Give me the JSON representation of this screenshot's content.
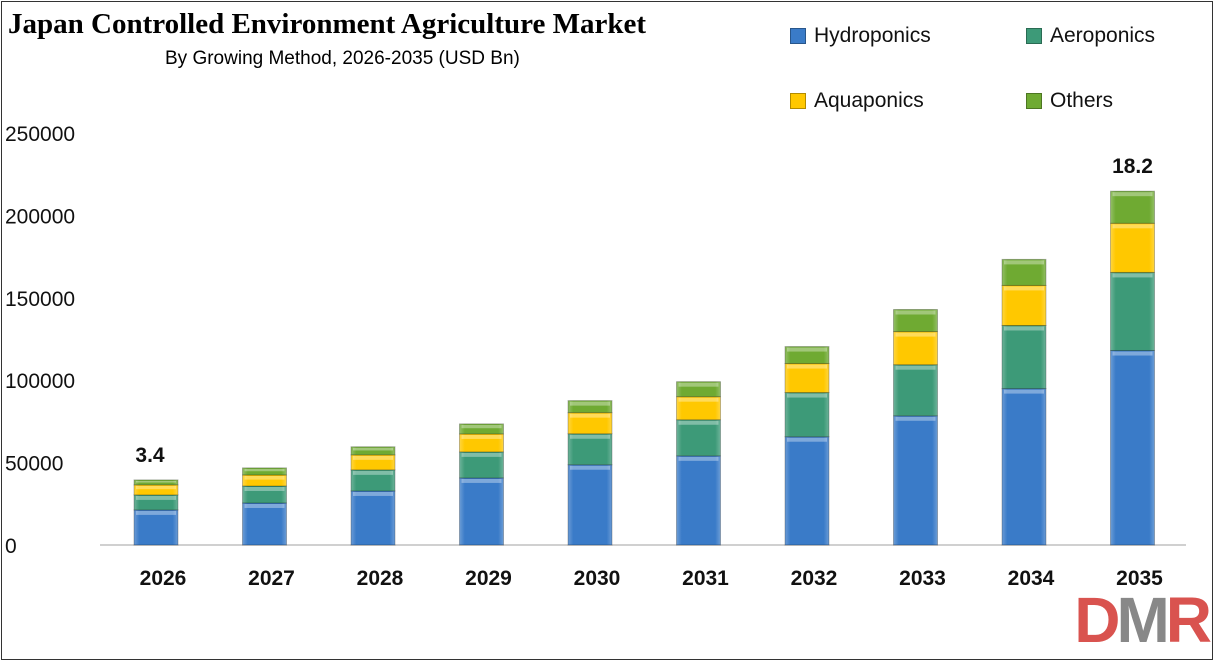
{
  "chart_data": {
    "type": "bar",
    "stacked": true,
    "title": "Japan Controlled Environment Agriculture Market",
    "subtitle": "By Growing Method, 2026-2035 (USD Bn)",
    "categories": [
      "2026",
      "2027",
      "2028",
      "2029",
      "2030",
      "2031",
      "2032",
      "2033",
      "2034",
      "2035"
    ],
    "series": [
      {
        "name": "Hydroponics",
        "color": "#3a7bc8",
        "values": [
          21300,
          25500,
          32800,
          40700,
          48700,
          54100,
          65700,
          78400,
          94900,
          118000
        ]
      },
      {
        "name": "Aeroponics",
        "color": "#3d9a78",
        "values": [
          9100,
          10300,
          12800,
          15800,
          18800,
          21900,
          26800,
          31000,
          38300,
          47400
        ]
      },
      {
        "name": "Aquaponics",
        "color": "#ffc800",
        "values": [
          6100,
          6700,
          9100,
          10900,
          12800,
          14000,
          17600,
          20100,
          24300,
          29800
        ]
      },
      {
        "name": "Others",
        "color": "#6faa32",
        "values": [
          3000,
          4300,
          4900,
          6100,
          7300,
          9100,
          10300,
          13400,
          15800,
          19500
        ]
      }
    ],
    "annotations": [
      {
        "category": "2026",
        "text": "3.4"
      },
      {
        "category": "2035",
        "text": "18.2"
      }
    ],
    "ylim": [
      0,
      250000
    ],
    "yticks": [
      "0",
      "50000",
      "100000",
      "150000",
      "200000",
      "250000"
    ],
    "grid": false,
    "legend_position": "top-right"
  },
  "logo": {
    "text": "DMR",
    "colors": [
      "#d9534f",
      "#777777"
    ]
  }
}
